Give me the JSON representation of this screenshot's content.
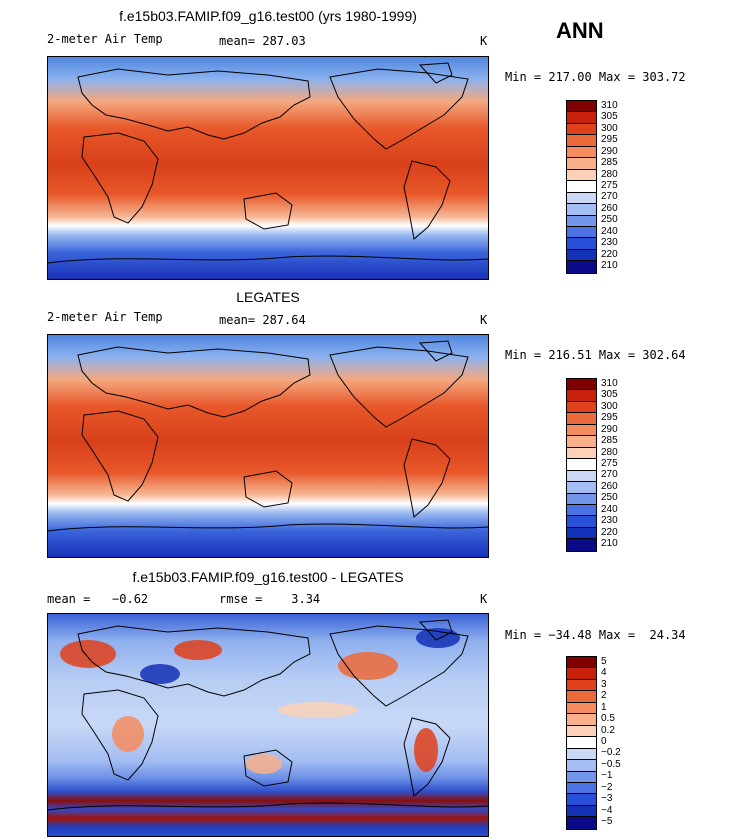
{
  "season": "ANN",
  "chart_data": [
    {
      "type": "heatmap",
      "title": "f.e15b03.FAMIP.f09_g16.test00 (yrs 1980-1999)",
      "left_label": "2-meter Air Temp",
      "center_label": "mean= 287.03",
      "units": "K",
      "minmax": "Min = 217.00 Max = 303.72",
      "min": 217.0,
      "max": 303.72,
      "mean": 287.03,
      "levels": [
        "310",
        "305",
        "300",
        "295",
        "290",
        "285",
        "280",
        "275",
        "270",
        "260",
        "250",
        "240",
        "230",
        "220",
        "210"
      ],
      "colors": [
        "#800000",
        "#c8200a",
        "#e0401a",
        "#ed6a3a",
        "#f58c60",
        "#f9b08a",
        "#fbd2b8",
        "#ffffff",
        "#cad8f6",
        "#a4bdf2",
        "#7297ea",
        "#4c73e4",
        "#2850d8",
        "#1432b8",
        "#0a0a88"
      ]
    },
    {
      "type": "heatmap",
      "title": "LEGATES",
      "left_label": "2-meter Air Temp",
      "center_label": "mean= 287.64",
      "units": "K",
      "minmax": "Min = 216.51 Max = 302.64",
      "min": 216.51,
      "max": 302.64,
      "mean": 287.64,
      "levels": [
        "310",
        "305",
        "300",
        "295",
        "290",
        "285",
        "280",
        "275",
        "270",
        "260",
        "250",
        "240",
        "230",
        "220",
        "210"
      ],
      "colors": [
        "#800000",
        "#c8200a",
        "#e0401a",
        "#ed6a3a",
        "#f58c60",
        "#f9b08a",
        "#fbd2b8",
        "#ffffff",
        "#cad8f6",
        "#a4bdf2",
        "#7297ea",
        "#4c73e4",
        "#2850d8",
        "#1432b8",
        "#0a0a88"
      ]
    },
    {
      "type": "heatmap",
      "title": "f.e15b03.FAMIP.f09_g16.test00 - LEGATES",
      "left_label": "mean =   −0.62",
      "center_label": "rmse =    3.34",
      "units": "K",
      "minmax": "Min = −34.48 Max =  24.34",
      "min": -34.48,
      "max": 24.34,
      "mean": -0.62,
      "rmse": 3.34,
      "levels": [
        "5",
        "4",
        "3",
        "2",
        "1",
        "0.5",
        "0.2",
        "0",
        "−0.2",
        "−0.5",
        "−1",
        "−2",
        "−3",
        "−4",
        "−5"
      ],
      "colors": [
        "#800000",
        "#c8200a",
        "#e0401a",
        "#ed6a3a",
        "#f58c60",
        "#f9b08a",
        "#fbd2b8",
        "#ffffff",
        "#cad8f6",
        "#a4bdf2",
        "#7297ea",
        "#4c73e4",
        "#2850d8",
        "#1432b8",
        "#0a0a88"
      ]
    }
  ]
}
